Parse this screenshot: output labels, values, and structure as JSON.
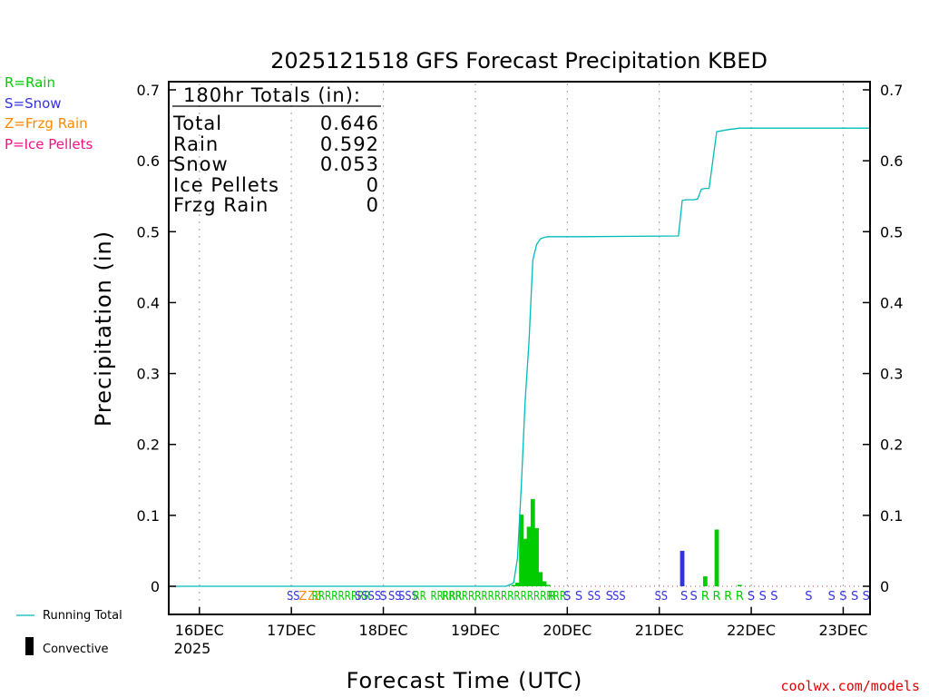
{
  "colors": {
    "rain": "#00cc00",
    "snow": "#3333dd",
    "frzg_rain": "#ff8800",
    "ice_pellets": "#ee1188",
    "running_total": "#00bbbb",
    "convective": "#000000",
    "url": "#e00000"
  },
  "legend": {
    "rain": "R=Rain",
    "snow": "S=Snow",
    "frzg_rain": "Z=Frzg Rain",
    "ice_pellets": "P=Ice Pellets"
  },
  "bottom_legend": {
    "running_total": "Running Total",
    "convective": "Convective"
  },
  "totals_box": {
    "title": "180hr Totals (in):",
    "rows": [
      {
        "label": "Total",
        "value": "0.646"
      },
      {
        "label": "Rain",
        "value": "0.592"
      },
      {
        "label": "Snow",
        "value": "0.053"
      },
      {
        "label": "Ice Pellets",
        "value": "0"
      },
      {
        "label": "Frzg Rain",
        "value": "0"
      }
    ]
  },
  "footer_url": "coolwx.com/models",
  "chart_data": {
    "type": "bar",
    "title": "2025121518 GFS Forecast Precipitation KBED",
    "xlabel": "Forecast Time (UTC)",
    "ylabel": "Precipitation (in)",
    "ylim": [
      0,
      0.7
    ],
    "yticks": [
      0,
      0.1,
      0.2,
      0.3,
      0.4,
      0.5,
      0.6,
      0.7
    ],
    "ytick_labels": [
      "0",
      "0.1",
      "0.2",
      "0.3",
      "0.4",
      "0.5",
      "0.6",
      "0.7"
    ],
    "x_unit": "forecast hour",
    "xlim": [
      -2,
      181
    ],
    "xticks": [
      6,
      30,
      54,
      78,
      102,
      126,
      150,
      174
    ],
    "xtick_labels": [
      "16DEC",
      "17DEC",
      "18DEC",
      "19DEC",
      "20DEC",
      "21DEC",
      "22DEC",
      "23DEC"
    ],
    "xtick_year": "2025",
    "grid": true,
    "bars": [
      {
        "x": 88,
        "value": 0.002,
        "type": "rain"
      },
      {
        "x": 89,
        "value": 0.005,
        "type": "rain"
      },
      {
        "x": 90,
        "value": 0.101,
        "type": "rain"
      },
      {
        "x": 91,
        "value": 0.067,
        "type": "rain"
      },
      {
        "x": 92,
        "value": 0.084,
        "type": "rain"
      },
      {
        "x": 93,
        "value": 0.123,
        "type": "rain"
      },
      {
        "x": 94,
        "value": 0.082,
        "type": "rain"
      },
      {
        "x": 95,
        "value": 0.02,
        "type": "rain"
      },
      {
        "x": 96,
        "value": 0.007,
        "type": "rain"
      },
      {
        "x": 97,
        "value": 0.002,
        "type": "rain"
      },
      {
        "x": 132,
        "value": 0.05,
        "type": "snow"
      },
      {
        "x": 138,
        "value": 0.014,
        "type": "rain"
      },
      {
        "x": 141,
        "value": 0.08,
        "type": "rain"
      },
      {
        "x": 147,
        "value": 0.002,
        "type": "rain"
      }
    ],
    "running_total": {
      "x": [
        -2,
        86,
        87,
        88,
        89,
        90,
        91,
        92,
        93,
        94,
        95,
        96,
        97,
        98,
        100,
        105,
        131,
        132,
        133,
        135,
        136,
        137,
        138,
        139,
        141,
        142,
        144,
        147,
        150,
        181
      ],
      "y": [
        0,
        0,
        0.002,
        0.005,
        0.04,
        0.141,
        0.26,
        0.345,
        0.46,
        0.482,
        0.49,
        0.492,
        0.493,
        0.493,
        0.493,
        0.493,
        0.494,
        0.544,
        0.545,
        0.545,
        0.546,
        0.56,
        0.561,
        0.561,
        0.641,
        0.642,
        0.644,
        0.646,
        0.646,
        0.646
      ]
    },
    "ptype_marks": [
      {
        "x": 30.5,
        "type": "snow",
        "label": "SS"
      },
      {
        "x": 33,
        "type": "frzg_rain",
        "label": "Z"
      },
      {
        "x": 36,
        "type": "frzg_rain",
        "label": "ZZ"
      },
      {
        "x": 43,
        "type": "rain",
        "label": "RRRRRRRRR"
      },
      {
        "x": 50,
        "type": "snow",
        "label": "SSSS"
      },
      {
        "x": 54,
        "type": "snow",
        "label": "S"
      },
      {
        "x": 57,
        "type": "snow",
        "label": "SS"
      },
      {
        "x": 60.5,
        "type": "snow",
        "label": "SSS"
      },
      {
        "x": 63.5,
        "type": "rain",
        "label": "RR"
      },
      {
        "x": 68,
        "type": "rain",
        "label": "RR"
      },
      {
        "x": 72,
        "type": "rain",
        "label": "RRR"
      },
      {
        "x": 85.5,
        "type": "rain",
        "label": "RRRRRRRRRRRRRRRRRRR"
      },
      {
        "x": 98,
        "type": "rain",
        "label": "R"
      },
      {
        "x": 102,
        "type": "snow",
        "label": "S"
      },
      {
        "x": 105,
        "type": "snow",
        "label": "S"
      },
      {
        "x": 109,
        "type": "snow",
        "label": "SS"
      },
      {
        "x": 113,
        "type": "snow",
        "label": "S"
      },
      {
        "x": 115.5,
        "type": "snow",
        "label": "SS"
      },
      {
        "x": 126.5,
        "type": "snow",
        "label": "SS"
      },
      {
        "x": 132.5,
        "type": "snow",
        "label": "S"
      },
      {
        "x": 135,
        "type": "snow",
        "label": "S"
      },
      {
        "x": 138,
        "type": "rain",
        "label": "R"
      },
      {
        "x": 141,
        "type": "rain",
        "label": "R"
      },
      {
        "x": 144,
        "type": "rain",
        "label": "R"
      },
      {
        "x": 147,
        "type": "rain",
        "label": "R"
      },
      {
        "x": 150,
        "type": "snow",
        "label": "S"
      },
      {
        "x": 153,
        "type": "snow",
        "label": "S"
      },
      {
        "x": 156,
        "type": "snow",
        "label": "S"
      },
      {
        "x": 165,
        "type": "snow",
        "label": "S"
      },
      {
        "x": 171,
        "type": "snow",
        "label": "S"
      },
      {
        "x": 174,
        "type": "snow",
        "label": "S"
      },
      {
        "x": 177,
        "type": "snow",
        "label": "S"
      },
      {
        "x": 180,
        "type": "snow",
        "label": "S"
      }
    ]
  }
}
